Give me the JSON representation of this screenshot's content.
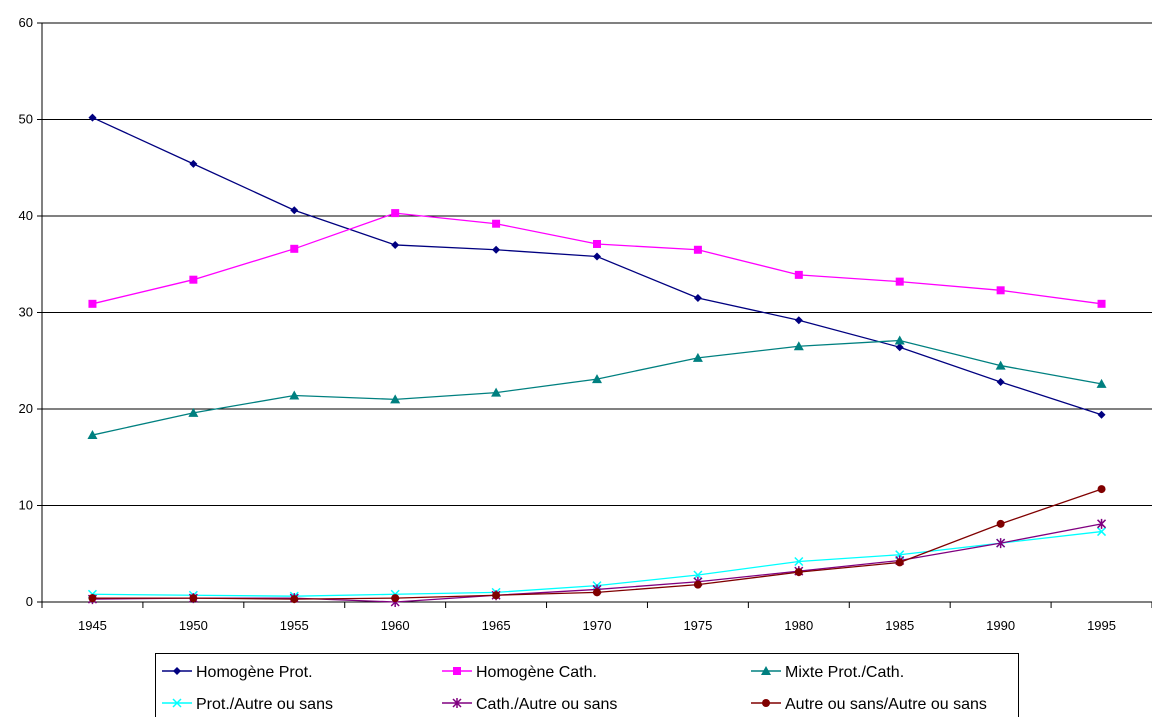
{
  "chart_data": {
    "type": "line",
    "title": "",
    "xlabel": "",
    "ylabel": "",
    "x": [
      "1945",
      "1950",
      "1955",
      "1960",
      "1965",
      "1970",
      "1975",
      "1980",
      "1985",
      "1990",
      "1995"
    ],
    "ylim": [
      0,
      60
    ],
    "yticks": [
      0,
      10,
      20,
      30,
      40,
      50,
      60
    ],
    "grid": "horizontal",
    "legend_position": "bottom",
    "series": [
      {
        "name": "Homogène Prot.",
        "color": "#000080",
        "marker": "diamond",
        "values": [
          50.2,
          45.4,
          40.6,
          37.0,
          36.5,
          35.8,
          31.5,
          29.2,
          26.4,
          22.8,
          19.4
        ]
      },
      {
        "name": "Homogène Cath.",
        "color": "#FF00FF",
        "marker": "square",
        "values": [
          30.9,
          33.4,
          36.6,
          40.3,
          39.2,
          37.1,
          36.5,
          33.9,
          33.2,
          32.3,
          30.9
        ]
      },
      {
        "name": "Mixte Prot./Cath.",
        "color": "#008080",
        "marker": "triangle",
        "values": [
          17.3,
          19.6,
          21.4,
          21.0,
          21.7,
          23.1,
          25.3,
          26.5,
          27.1,
          24.5,
          22.6
        ]
      },
      {
        "name": "Prot./Autre ou sans",
        "color": "#00FFFF",
        "marker": "x",
        "values": [
          0.8,
          0.7,
          0.6,
          0.8,
          1.0,
          1.7,
          2.8,
          4.2,
          4.9,
          6.1,
          7.3
        ]
      },
      {
        "name": "Cath./Autre ou sans",
        "color": "#800080",
        "marker": "star",
        "values": [
          0.3,
          0.4,
          0.4,
          0.0,
          0.7,
          1.3,
          2.1,
          3.2,
          4.3,
          6.1,
          8.1
        ]
      },
      {
        "name": "Autre ou sans/Autre ou sans",
        "color": "#800000",
        "marker": "circle",
        "values": [
          0.4,
          0.4,
          0.3,
          0.4,
          0.7,
          1.0,
          1.8,
          3.1,
          4.1,
          8.1,
          11.7
        ]
      }
    ]
  }
}
